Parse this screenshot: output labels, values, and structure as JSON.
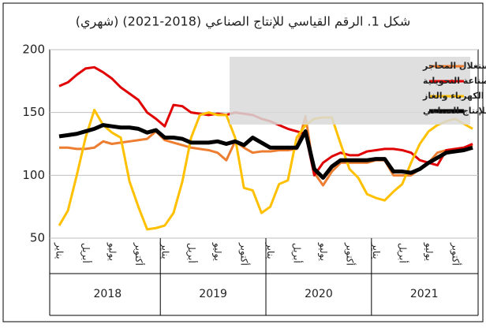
{
  "chart_data": {
    "type": "line",
    "title": "شكل 1. الرقم القياسي للإنتاج الصناعي (2018-2021) (شهري)",
    "categories": [
      "يناير",
      null,
      null,
      "أبريل",
      null,
      null,
      "يوليو",
      null,
      null,
      "أكتوبر",
      null,
      null,
      "يناير",
      null,
      null,
      "أبريل",
      null,
      null,
      "يوليو",
      null,
      null,
      "أكتوبر",
      null,
      null,
      "يناير",
      null,
      null,
      "أبريل",
      null,
      null,
      "يوليو",
      null,
      null,
      "أكتوبر",
      null,
      null,
      "يناير",
      null,
      null,
      "أبريل",
      null,
      null,
      "يوليو",
      null,
      null,
      "أكتوبر",
      null,
      null
    ],
    "x_groups": [
      "2018",
      "2019",
      "2020",
      "2021"
    ],
    "ylim": [
      50,
      200
    ],
    "yticks": [
      50,
      100,
      150,
      200
    ],
    "grid": true,
    "legend": "top-right",
    "series": [
      {
        "name": "التعدين واستغلال المحاجر",
        "color": "#ed7d31",
        "width": 3,
        "values": [
          122,
          122,
          121,
          121,
          122,
          127,
          125,
          126,
          127,
          128,
          129,
          135,
          128,
          126,
          124,
          122,
          121,
          120,
          118,
          112,
          127,
          122,
          118,
          119,
          119,
          120,
          120,
          121,
          147,
          102,
          92,
          103,
          110,
          110,
          110,
          110,
          112,
          112,
          100,
          100,
          100,
          105,
          110,
          118,
          120,
          120,
          121,
          124
        ]
      },
      {
        "name": "الصناعة التحويلية",
        "color": "#e00000",
        "width": 3,
        "values": [
          171,
          174,
          180,
          185,
          186,
          182,
          177,
          170,
          165,
          160,
          150,
          145,
          139,
          156,
          155,
          150,
          149,
          148,
          149,
          148,
          150,
          149,
          148,
          145,
          143,
          140,
          137,
          135,
          133,
          100,
          110,
          115,
          118,
          116,
          116,
          119,
          120,
          121,
          121,
          120,
          118,
          112,
          110,
          108,
          120,
          121,
          122,
          125
        ]
      },
      {
        "name": "إمدادات الكهرباء والغاز",
        "color": "#ffc000",
        "width": 3,
        "values": [
          60,
          72,
          100,
          130,
          152,
          140,
          134,
          130,
          95,
          75,
          57,
          58,
          60,
          70,
          95,
          130,
          148,
          150,
          148,
          148,
          130,
          90,
          88,
          70,
          75,
          93,
          96,
          130,
          140,
          145,
          146,
          146,
          125,
          105,
          98,
          85,
          82,
          80,
          87,
          93,
          110,
          125,
          135,
          140,
          143,
          145,
          141,
          137
        ]
      },
      {
        "name": "الرقم القياسي العام للإنتاج الصناعي",
        "color": "#000000",
        "width": 5,
        "values": [
          131,
          132,
          133,
          135,
          137,
          140,
          139,
          138,
          138,
          137,
          134,
          136,
          130,
          130,
          129,
          126,
          126,
          126,
          127,
          125,
          127,
          124,
          130,
          126,
          122,
          122,
          122,
          122,
          135,
          105,
          98,
          107,
          112,
          112,
          112,
          112,
          113,
          113,
          103,
          103,
          102,
          105,
          110,
          114,
          118,
          119,
          120,
          122
        ]
      }
    ]
  }
}
